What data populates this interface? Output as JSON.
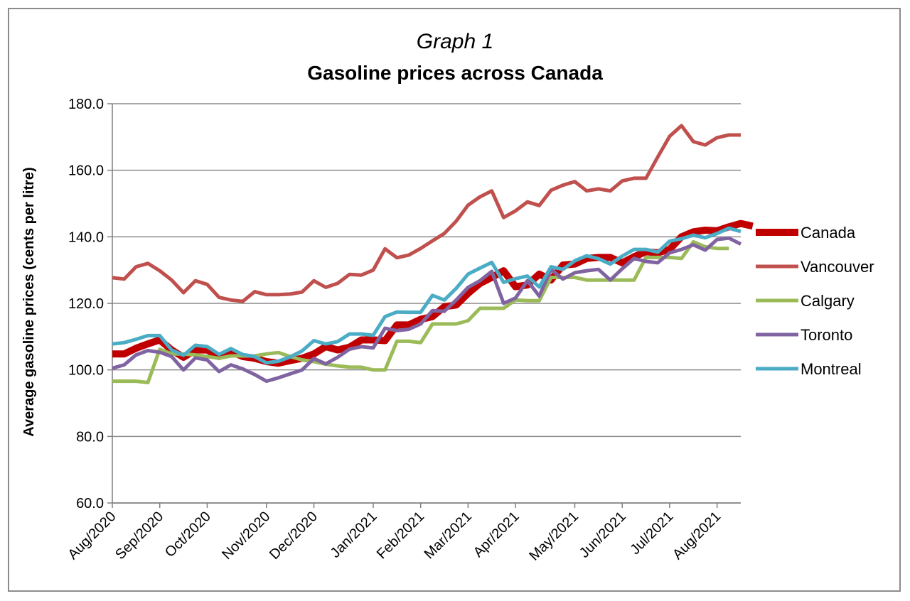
{
  "chart_data": {
    "type": "line",
    "subtitle": "Graph 1",
    "title": "Gasoline prices across Canada",
    "ylabel": "Average gasoline prices (cents per litre)",
    "xlabel": "",
    "ylim": [
      60,
      180
    ],
    "yticks": [
      "180.0",
      "160.0",
      "140.0",
      "120.0",
      "100.0",
      "80.0",
      "60.0"
    ],
    "x_tick_labels": [
      "Aug/2020",
      "Sep/2020",
      "Oct/2020",
      "Nov/2020",
      "Dec/2020",
      "Jan/2021",
      "Feb/2021",
      "Mar/2021",
      "Apr/2021",
      "May/2021",
      "Jun/2021",
      "Jul/2021",
      "Aug/2021"
    ],
    "x_note": "Weekly observations; x values are week indices from Aug/2020, tick labels mark month starts.",
    "grid": true,
    "legend_position": "right",
    "series": [
      {
        "name": "Canada",
        "color": "#c00000",
        "values": [
          104.8,
          104.8,
          106.5,
          107.8,
          109.0,
          106.0,
          103.8,
          106.0,
          106.0,
          104.0,
          105.5,
          104.0,
          103.5,
          102.5,
          102.0,
          102.8,
          103.5,
          104.8,
          107.0,
          106.0,
          106.8,
          109.0,
          109.0,
          108.8,
          113.5,
          113.5,
          115.2,
          116.0,
          119.0,
          119.5,
          123.0,
          126.0,
          127.8,
          129.8,
          125.0,
          125.5,
          128.8,
          127.0,
          131.5,
          131.8,
          133.5,
          133.8,
          133.8,
          132.2,
          134.0,
          135.5,
          135.2,
          136.2,
          140.0,
          141.5,
          142.0,
          141.8,
          143.0,
          144.0,
          143.2
        ]
      },
      {
        "name": "Vancouver",
        "color": "#c0504d",
        "values": [
          127.7,
          127.3,
          131.0,
          132.0,
          129.8,
          127.0,
          123.2,
          126.8,
          125.7,
          121.8,
          121.0,
          120.6,
          123.5,
          122.6,
          122.6,
          122.8,
          123.4,
          126.8,
          124.8,
          126.0,
          128.7,
          128.5,
          130.0,
          136.4,
          133.7,
          134.5,
          136.5,
          138.8,
          141.0,
          144.7,
          149.5,
          152.0,
          153.8,
          145.8,
          147.8,
          150.5,
          149.4,
          154.0,
          155.5,
          156.6,
          153.8,
          154.4,
          153.8,
          156.8,
          157.6,
          157.6,
          164.0,
          170.2,
          173.4,
          168.6,
          167.6,
          169.8,
          170.6,
          170.6
        ]
      },
      {
        "name": "Calgary",
        "color": "#9bbb59",
        "values": [
          96.6,
          96.6,
          96.6,
          96.2,
          106.2,
          104.8,
          104.8,
          104.5,
          104.0,
          103.5,
          104.2,
          104.2,
          104.2,
          104.8,
          105.2,
          104.0,
          103.0,
          102.5,
          101.7,
          101.2,
          100.8,
          100.8,
          100.0,
          100.0,
          108.6,
          108.6,
          108.2,
          113.8,
          113.8,
          113.8,
          114.8,
          118.5,
          118.5,
          118.5,
          121.0,
          120.8,
          120.8,
          127.8,
          127.8,
          127.8,
          127.0,
          127.0,
          127.0,
          127.0,
          127.0,
          133.8,
          133.8,
          133.8,
          133.5,
          138.5,
          137.0,
          136.5,
          136.5
        ]
      },
      {
        "name": "Toronto",
        "color": "#8064a2",
        "values": [
          100.5,
          101.5,
          104.5,
          105.8,
          105.3,
          104.0,
          100.0,
          103.6,
          103.0,
          99.5,
          101.5,
          100.3,
          98.6,
          96.6,
          97.6,
          98.8,
          100.0,
          103.4,
          101.8,
          103.8,
          106.2,
          107.0,
          106.6,
          112.5,
          111.8,
          112.2,
          113.8,
          117.8,
          117.6,
          121.0,
          124.8,
          126.8,
          129.6,
          120.0,
          121.6,
          126.8,
          122.2,
          130.2,
          127.3,
          129.2,
          129.8,
          130.2,
          127.0,
          130.4,
          133.5,
          132.6,
          132.2,
          135.2,
          136.2,
          137.6,
          136.0,
          139.2,
          139.6,
          137.8
        ]
      },
      {
        "name": "Montreal",
        "color": "#4bacc6",
        "values": [
          107.8,
          108.2,
          109.2,
          110.3,
          110.3,
          106.0,
          104.4,
          107.4,
          107.0,
          104.7,
          106.4,
          104.6,
          104.0,
          102.1,
          102.6,
          103.9,
          105.7,
          108.8,
          107.8,
          108.5,
          110.8,
          110.8,
          110.4,
          116.0,
          117.4,
          117.3,
          117.3,
          122.4,
          121.0,
          124.5,
          128.8,
          130.6,
          132.3,
          126.3,
          127.4,
          128.2,
          124.9,
          131.0,
          130.2,
          132.8,
          134.3,
          133.4,
          131.8,
          134.2,
          136.2,
          136.2,
          135.4,
          138.7,
          139.4,
          140.5,
          139.7,
          141.0,
          142.6,
          141.6
        ]
      }
    ]
  }
}
